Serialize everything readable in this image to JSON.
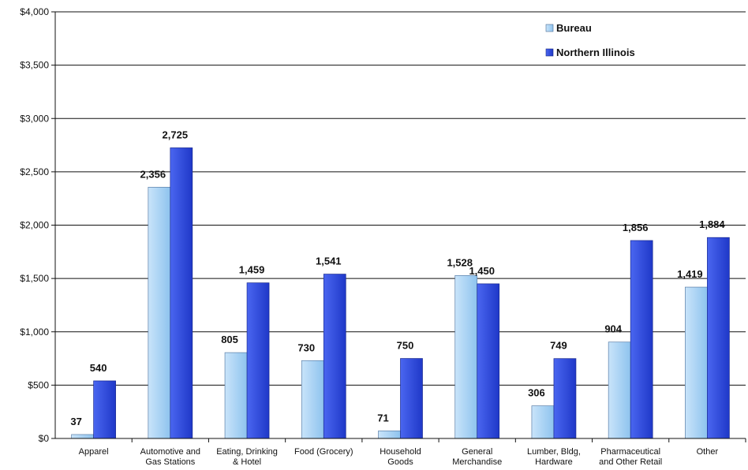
{
  "chart_data": {
    "type": "bar",
    "title": "",
    "xlabel": "",
    "ylabel": "",
    "ylim": [
      0,
      4000
    ],
    "yticks": [
      0,
      500,
      1000,
      1500,
      2000,
      2500,
      3000,
      3500,
      4000
    ],
    "ytick_labels": [
      "$0",
      "$500",
      "$1,000",
      "$1,500",
      "$2,000",
      "$2,500",
      "$3,000",
      "$3,500",
      "$4,000"
    ],
    "grid": true,
    "legend_position": "top-right",
    "categories": [
      [
        "Apparel"
      ],
      [
        "Automotive and",
        "Gas Stations"
      ],
      [
        "Eating, Drinking",
        "& Hotel"
      ],
      [
        "Food (Grocery)"
      ],
      [
        "Household",
        "Goods"
      ],
      [
        "General",
        "Merchandise"
      ],
      [
        "Lumber, Bldg,",
        "Hardware"
      ],
      [
        "Pharmaceutical",
        "and Other Retail"
      ],
      [
        "Other"
      ]
    ],
    "series": [
      {
        "name": "Bureau",
        "color": "#9ccbf2",
        "values": [
          37,
          2356,
          805,
          730,
          71,
          1528,
          306,
          904,
          1419
        ],
        "labels": [
          "37",
          "2,356",
          "805",
          "730",
          "71",
          "1,528",
          "306",
          "904",
          "1,419"
        ]
      },
      {
        "name": "Northern Illinois",
        "color": "#2f4fe0",
        "values": [
          540,
          2725,
          1459,
          1541,
          750,
          1450,
          749,
          1856,
          1884
        ],
        "labels": [
          "540",
          "2,725",
          "1,459",
          "1,541",
          "750",
          "1,450",
          "749",
          "1,856",
          "1,884"
        ]
      }
    ]
  }
}
